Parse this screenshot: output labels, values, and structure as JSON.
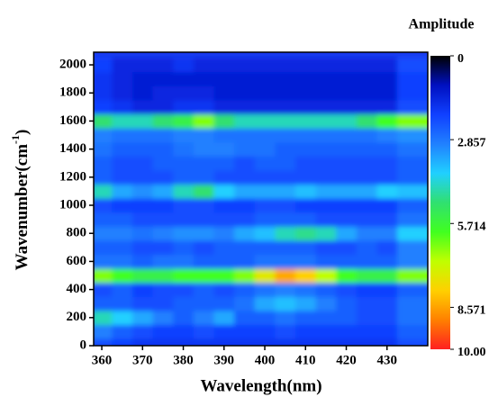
{
  "chart_data": {
    "type": "heatmap",
    "title": "Amplitude",
    "x_label": "Wavelength(nm)",
    "y_label": {
      "text": "Wavenumber(cm",
      "superscript": "-1",
      "suffix": ")"
    },
    "x": [
      360,
      365,
      370,
      375,
      380,
      385,
      390,
      395,
      400,
      405,
      410,
      415,
      420,
      425,
      430,
      435,
      440
    ],
    "y": [
      0,
      100,
      200,
      300,
      400,
      500,
      600,
      700,
      800,
      900,
      1000,
      1100,
      1200,
      1300,
      1400,
      1500,
      1600,
      1700,
      1800,
      1900,
      2000
    ],
    "z": [
      [
        2.2,
        2.0,
        1.8,
        1.8,
        1.8,
        1.8,
        1.8,
        1.8,
        1.8,
        1.8,
        1.8,
        1.8,
        1.8,
        1.8,
        1.8,
        2.2,
        2.2
      ],
      [
        3.0,
        2.5,
        2.2,
        2.0,
        2.0,
        2.2,
        2.0,
        2.0,
        2.0,
        2.2,
        2.0,
        2.0,
        2.0,
        2.0,
        2.0,
        2.5,
        2.5
      ],
      [
        4.5,
        4.0,
        3.5,
        3.0,
        2.5,
        3.0,
        3.5,
        2.5,
        2.5,
        2.8,
        2.5,
        2.5,
        2.5,
        2.2,
        2.2,
        2.8,
        2.8
      ],
      [
        2.5,
        2.5,
        2.2,
        2.2,
        2.5,
        2.5,
        2.5,
        2.8,
        3.5,
        3.8,
        3.5,
        3.0,
        2.5,
        2.2,
        2.2,
        2.8,
        2.8
      ],
      [
        2.2,
        2.5,
        2.0,
        2.2,
        2.2,
        2.5,
        2.2,
        2.5,
        2.8,
        3.0,
        2.8,
        2.5,
        2.2,
        2.0,
        2.0,
        2.5,
        2.5
      ],
      [
        6.5,
        6.0,
        5.5,
        5.5,
        6.0,
        6.0,
        6.0,
        6.5,
        7.5,
        8.5,
        8.0,
        7.0,
        6.0,
        5.5,
        5.5,
        6.5,
        6.5
      ],
      [
        2.8,
        2.8,
        2.5,
        2.8,
        2.8,
        2.5,
        2.5,
        2.5,
        2.8,
        2.8,
        2.8,
        2.5,
        2.5,
        2.5,
        2.5,
        3.0,
        3.0
      ],
      [
        2.5,
        2.5,
        2.2,
        2.2,
        2.5,
        2.2,
        2.5,
        2.5,
        2.5,
        2.5,
        2.5,
        2.2,
        2.2,
        2.5,
        2.2,
        3.0,
        3.0
      ],
      [
        3.0,
        3.0,
        2.8,
        3.0,
        3.2,
        3.2,
        3.0,
        3.5,
        3.8,
        4.5,
        4.8,
        4.5,
        3.5,
        3.0,
        3.0,
        4.0,
        4.0
      ],
      [
        2.5,
        2.5,
        2.2,
        2.2,
        2.2,
        2.2,
        2.2,
        2.2,
        2.5,
        2.5,
        2.5,
        2.2,
        2.2,
        2.2,
        2.2,
        2.8,
        2.8
      ],
      [
        2.2,
        2.0,
        2.0,
        2.0,
        2.2,
        2.2,
        2.0,
        2.0,
        2.2,
        2.2,
        2.0,
        2.0,
        2.0,
        2.0,
        2.0,
        2.5,
        2.5
      ],
      [
        4.5,
        3.5,
        3.2,
        3.5,
        4.5,
        5.0,
        4.0,
        3.5,
        3.5,
        3.5,
        3.8,
        3.5,
        3.5,
        3.5,
        4.0,
        3.8,
        3.8
      ],
      [
        2.5,
        2.2,
        2.2,
        2.2,
        2.5,
        2.5,
        2.2,
        2.2,
        2.2,
        2.2,
        2.2,
        2.2,
        2.2,
        2.2,
        2.2,
        2.5,
        2.5
      ],
      [
        2.5,
        2.2,
        2.2,
        2.5,
        2.5,
        2.5,
        2.5,
        2.2,
        2.5,
        2.5,
        2.2,
        2.2,
        2.2,
        2.2,
        2.2,
        2.5,
        2.5
      ],
      [
        2.8,
        2.5,
        2.5,
        2.5,
        2.8,
        3.0,
        3.0,
        2.8,
        2.8,
        2.5,
        2.5,
        2.5,
        2.5,
        2.5,
        2.5,
        2.8,
        2.8
      ],
      [
        3.0,
        2.8,
        2.8,
        2.8,
        3.0,
        3.0,
        2.8,
        2.8,
        2.8,
        2.8,
        2.8,
        2.8,
        2.8,
        2.8,
        3.0,
        3.2,
        3.2
      ],
      [
        5.0,
        4.5,
        4.5,
        5.0,
        5.5,
        6.5,
        5.0,
        4.5,
        4.5,
        4.5,
        4.5,
        4.5,
        4.5,
        5.0,
        6.0,
        6.5,
        6.5
      ],
      [
        2.0,
        1.8,
        1.5,
        1.5,
        1.8,
        1.8,
        1.5,
        1.5,
        1.5,
        1.5,
        1.5,
        1.5,
        1.5,
        1.5,
        1.5,
        2.2,
        2.2
      ],
      [
        1.8,
        1.5,
        1.3,
        1.5,
        1.5,
        1.5,
        1.3,
        1.3,
        1.3,
        1.3,
        1.3,
        1.3,
        1.3,
        1.3,
        1.3,
        2.0,
        2.0
      ],
      [
        1.8,
        1.5,
        1.3,
        1.3,
        1.3,
        1.3,
        1.3,
        1.3,
        1.3,
        1.3,
        1.3,
        1.3,
        1.3,
        1.3,
        1.3,
        2.0,
        2.0
      ],
      [
        2.0,
        1.5,
        1.5,
        1.5,
        1.8,
        1.5,
        1.5,
        1.5,
        1.5,
        1.5,
        1.5,
        1.5,
        1.5,
        1.5,
        1.5,
        2.2,
        2.2
      ]
    ],
    "xlim": [
      358,
      440
    ],
    "xticks": [
      360,
      370,
      380,
      390,
      400,
      410,
      420,
      430
    ],
    "ylim": [
      0,
      2090
    ],
    "yticks": [
      0,
      200,
      400,
      600,
      800,
      1000,
      1200,
      1400,
      1600,
      1800,
      2000
    ],
    "clim": [
      0,
      10
    ],
    "cticks": [
      0,
      2.857,
      5.714,
      8.571,
      {
        "value": 10,
        "label": "10.00"
      }
    ],
    "colormap": [
      "#000000",
      "#0010c0",
      "#1040ff",
      "#2080ff",
      "#20d0ff",
      "#30e070",
      "#40ff20",
      "#c0ff00",
      "#ffd000",
      "#ff8000",
      "#ff2020"
    ]
  }
}
